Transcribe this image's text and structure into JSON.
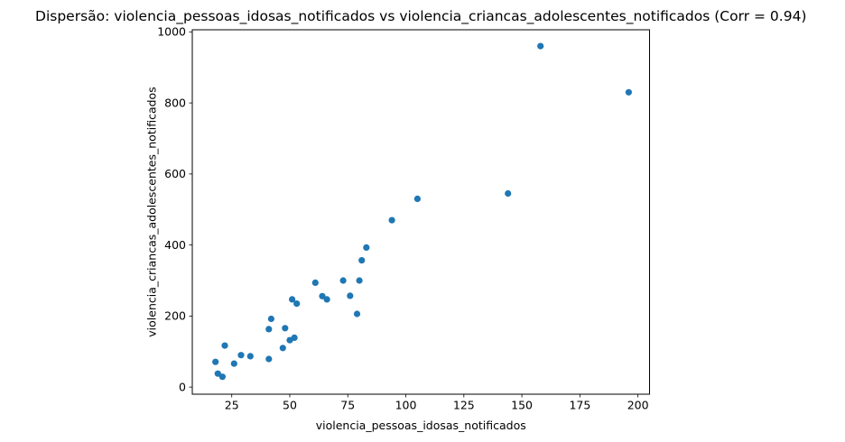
{
  "figure": {
    "background": "#ffffff",
    "text_color": "#000000",
    "spine_color": "#000000"
  },
  "chart_data": {
    "type": "scatter",
    "title": "Dispersão: violencia_pessoas_idosas_notificados vs violencia_criancas_adolescentes_notificados (Corr = 0.94)",
    "xlabel": "violencia_pessoas_idosas_notificados",
    "ylabel": "violencia_criancas_adolescentes_notificados",
    "correlation": 0.94,
    "marker_color": "#1f77b4",
    "marker_radius": 3.6,
    "grid": false,
    "legend": "none",
    "xlim": [
      8,
      205
    ],
    "ylim": [
      -20,
      1006
    ],
    "x_ticks": [
      25,
      50,
      75,
      100,
      125,
      150,
      175,
      200
    ],
    "y_ticks": [
      0,
      200,
      400,
      600,
      800,
      1000
    ],
    "points": [
      {
        "x": 18,
        "y": 71
      },
      {
        "x": 19,
        "y": 38
      },
      {
        "x": 21,
        "y": 29
      },
      {
        "x": 22,
        "y": 117
      },
      {
        "x": 26,
        "y": 66
      },
      {
        "x": 29,
        "y": 90
      },
      {
        "x": 33,
        "y": 87
      },
      {
        "x": 41,
        "y": 79
      },
      {
        "x": 41,
        "y": 163
      },
      {
        "x": 42,
        "y": 192
      },
      {
        "x": 47,
        "y": 110
      },
      {
        "x": 48,
        "y": 166
      },
      {
        "x": 50,
        "y": 132
      },
      {
        "x": 52,
        "y": 139
      },
      {
        "x": 51,
        "y": 247
      },
      {
        "x": 53,
        "y": 235
      },
      {
        "x": 61,
        "y": 294
      },
      {
        "x": 64,
        "y": 256
      },
      {
        "x": 66,
        "y": 247
      },
      {
        "x": 73,
        "y": 300
      },
      {
        "x": 76,
        "y": 257
      },
      {
        "x": 79,
        "y": 206
      },
      {
        "x": 80,
        "y": 300
      },
      {
        "x": 81,
        "y": 357
      },
      {
        "x": 83,
        "y": 393
      },
      {
        "x": 94,
        "y": 470
      },
      {
        "x": 105,
        "y": 530
      },
      {
        "x": 144,
        "y": 545
      },
      {
        "x": 158,
        "y": 960
      },
      {
        "x": 196,
        "y": 830
      }
    ]
  }
}
